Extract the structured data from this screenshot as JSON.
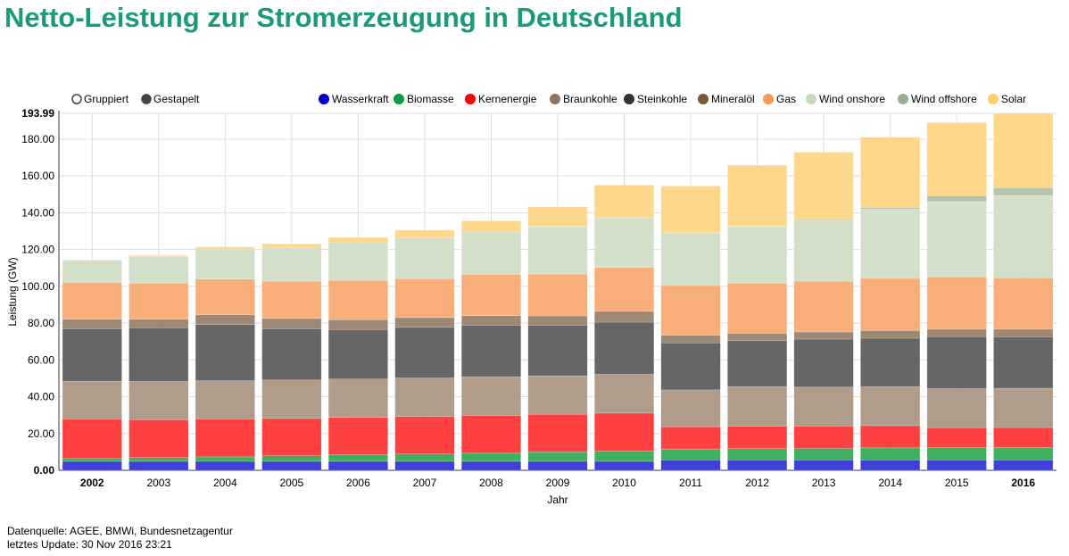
{
  "title": "Netto-Leistung zur Stromerzeugung in Deutschland",
  "source": "Datenquelle: AGEE, BMWi, Bundesnetzagentur",
  "update": "letztes Update: 30 Nov 2016 23:21",
  "modes": [
    {
      "label": "Gruppiert",
      "selected": false
    },
    {
      "label": "Gestapelt",
      "selected": true
    }
  ],
  "chart_data": {
    "type": "bar",
    "stacked": true,
    "xlabel": "Jahr",
    "ylabel": "Leistung (GW)",
    "ylim": [
      0,
      193.99
    ],
    "yticks": [
      "0.00",
      "20.00",
      "40.00",
      "60.00",
      "80.00",
      "100.00",
      "120.00",
      "140.00",
      "160.00",
      "180.00",
      "193.99"
    ],
    "categories": [
      "2002",
      "2003",
      "2004",
      "2005",
      "2006",
      "2007",
      "2008",
      "2009",
      "2010",
      "2011",
      "2012",
      "2013",
      "2014",
      "2015",
      "2016"
    ],
    "series": [
      {
        "name": "Wasserkraft",
        "color": "#4040d8",
        "legend": "#0000cc",
        "values": [
          4.9,
          4.9,
          4.9,
          4.9,
          4.9,
          4.9,
          4.9,
          4.9,
          4.9,
          5.6,
          5.6,
          5.6,
          5.6,
          5.6,
          5.6
        ]
      },
      {
        "name": "Biomasse",
        "color": "#40b060",
        "legend": "#00a040",
        "values": [
          1.5,
          2.0,
          2.4,
          3.0,
          3.6,
          4.0,
          4.4,
          5.1,
          5.7,
          6.0,
          6.2,
          6.3,
          6.6,
          6.8,
          6.9
        ]
      },
      {
        "name": "Kernenergie",
        "color": "#ff4040",
        "legend": "#ff0000",
        "values": [
          21.5,
          20.6,
          20.6,
          20.3,
          20.3,
          20.3,
          20.5,
          20.5,
          20.5,
          12.1,
          12.1,
          12.1,
          12.1,
          10.8,
          10.8
        ]
      },
      {
        "name": "Braunkohle",
        "color": "#b09c8a",
        "legend": "#8e7560",
        "values": [
          20.5,
          20.8,
          20.8,
          20.9,
          20.8,
          21.0,
          21.1,
          20.9,
          21.1,
          20.0,
          21.6,
          21.2,
          21.2,
          21.2,
          21.3
        ]
      },
      {
        "name": "Steinkohle",
        "color": "#666666",
        "legend": "#333333",
        "values": [
          28.5,
          29.2,
          30.5,
          27.8,
          26.9,
          27.6,
          27.9,
          27.4,
          28.3,
          25.6,
          25.0,
          26.1,
          26.3,
          28.3,
          27.9
        ]
      },
      {
        "name": "Mineralöl",
        "color": "#9c8874",
        "legend": "#7a5a3a",
        "values": [
          5.2,
          4.6,
          5.3,
          5.6,
          5.4,
          5.2,
          5.2,
          5.1,
          5.9,
          4.1,
          3.9,
          3.9,
          4.1,
          4.0,
          4.2
        ]
      },
      {
        "name": "Gas",
        "color": "#f8ae78",
        "legend": "#f59a55",
        "values": [
          20.0,
          19.6,
          19.4,
          20.3,
          21.3,
          21.2,
          22.6,
          22.8,
          23.8,
          27.0,
          27.4,
          27.6,
          28.4,
          28.4,
          28.0
        ]
      },
      {
        "name": "Wind onshore",
        "color": "#d2e0ca",
        "legend": "#c4dab8",
        "values": [
          12.0,
          14.6,
          16.4,
          18.2,
          20.5,
          22.1,
          22.9,
          25.7,
          26.8,
          28.5,
          30.7,
          32.9,
          37.6,
          40.9,
          44.6
        ]
      },
      {
        "name": "Wind offshore",
        "color": "#b4c4ae",
        "legend": "#9aae94",
        "values": [
          0,
          0,
          0,
          0,
          0,
          0,
          0,
          0.1,
          0.2,
          0.2,
          0.3,
          0.5,
          0.9,
          3.3,
          4.2
        ]
      },
      {
        "name": "Solar",
        "color": "#fdd88a",
        "legend": "#fdcf6a",
        "values": [
          0.3,
          0.4,
          1.1,
          2.1,
          2.9,
          4.2,
          6.1,
          10.6,
          17.9,
          25.4,
          33.0,
          36.7,
          38.2,
          39.6,
          40.4
        ]
      }
    ]
  }
}
